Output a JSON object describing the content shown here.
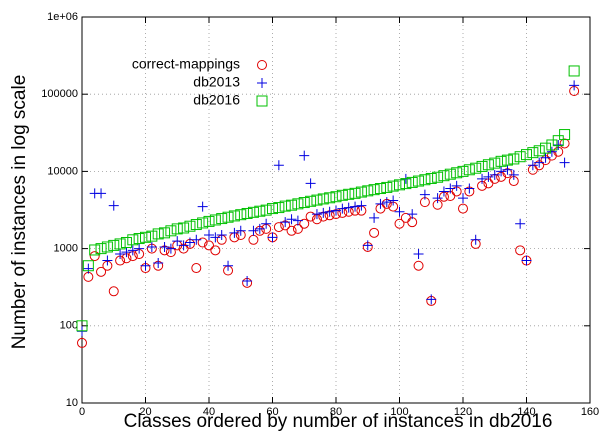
{
  "chart_data": {
    "type": "scatter",
    "x_label": "Classes ordered by number of instances in db2016",
    "y_label": "Number of instances  in log scale",
    "xlim": [
      0,
      160
    ],
    "xticks": [
      0,
      20,
      40,
      60,
      80,
      100,
      120,
      140,
      160
    ],
    "ylim": [
      10,
      1000000
    ],
    "yticks": [
      10,
      100,
      1000,
      10000,
      100000,
      {
        "value": 1000000,
        "label": "1e+06"
      }
    ],
    "y_log": true,
    "grid": true,
    "legend": "upper left",
    "x": [
      0,
      2,
      4,
      6,
      8,
      10,
      12,
      14,
      16,
      18,
      20,
      22,
      24,
      26,
      28,
      30,
      32,
      34,
      36,
      38,
      40,
      42,
      44,
      46,
      48,
      50,
      52,
      54,
      56,
      58,
      60,
      62,
      64,
      66,
      68,
      70,
      72,
      74,
      76,
      78,
      80,
      82,
      84,
      86,
      88,
      90,
      92,
      94,
      96,
      98,
      100,
      102,
      104,
      106,
      108,
      110,
      112,
      114,
      116,
      118,
      120,
      122,
      124,
      126,
      128,
      130,
      132,
      134,
      136,
      138,
      140,
      142,
      144,
      146,
      148,
      150,
      152,
      155
    ],
    "series": [
      {
        "name": "correct-mappings",
        "color": "#e00000",
        "marker": "circle",
        "values": [
          60,
          430,
          800,
          500,
          600,
          280,
          700,
          750,
          800,
          850,
          560,
          1000,
          600,
          950,
          900,
          1100,
          1000,
          1150,
          560,
          1200,
          1100,
          950,
          1300,
          520,
          1400,
          1500,
          360,
          1300,
          1700,
          1800,
          1400,
          1900,
          2000,
          1700,
          1800,
          2100,
          2600,
          2400,
          2600,
          2700,
          2800,
          2900,
          3000,
          3100,
          3100,
          1050,
          1600,
          3300,
          3800,
          3500,
          2100,
          2500,
          2200,
          600,
          4000,
          210,
          3700,
          4700,
          4800,
          5500,
          3300,
          5500,
          1150,
          6500,
          7000,
          8000,
          8500,
          9500,
          7500,
          950,
          700,
          10500,
          12000,
          14000,
          16000,
          18000,
          23000,
          110000
        ]
      },
      {
        "name": "db2013",
        "color": "#0000e0",
        "marker": "plus",
        "values": [
          85,
          550,
          5200,
          5200,
          700,
          3600,
          850,
          900,
          950,
          1000,
          600,
          1050,
          650,
          1050,
          1000,
          1250,
          1100,
          1200,
          1300,
          3500,
          1500,
          1400,
          1500,
          600,
          1600,
          1700,
          380,
          1700,
          1800,
          2100,
          1400,
          12000,
          2200,
          2400,
          2300,
          16000,
          7000,
          2800,
          2900,
          3000,
          3100,
          3300,
          3400,
          3500,
          3600,
          1100,
          2500,
          3800,
          4000,
          4200,
          3000,
          8000,
          2800,
          850,
          5000,
          220,
          4500,
          5500,
          6000,
          6500,
          4500,
          6000,
          1300,
          8000,
          8500,
          9000,
          10000,
          10500,
          9000,
          2100,
          700,
          12000,
          13000,
          15000,
          18000,
          22000,
          13000,
          130000
        ]
      },
      {
        "name": "db2016",
        "color": "#00c000",
        "marker": "square",
        "values": [
          100,
          600,
          960,
          1000,
          1050,
          1100,
          1150,
          1200,
          1300,
          1350,
          1400,
          1450,
          1550,
          1600,
          1700,
          1800,
          1850,
          1950,
          2050,
          2150,
          2250,
          2350,
          2450,
          2550,
          2650,
          2750,
          2850,
          2950,
          3050,
          3150,
          3300,
          3400,
          3550,
          3650,
          3800,
          3950,
          4100,
          4250,
          4400,
          4550,
          4700,
          4900,
          5050,
          5200,
          5400,
          5600,
          5800,
          6000,
          6200,
          6450,
          6700,
          6950,
          7200,
          7500,
          7800,
          8100,
          8400,
          8800,
          9200,
          9600,
          10000,
          10500,
          11000,
          11600,
          12200,
          12800,
          13500,
          14000,
          14500,
          15500,
          16500,
          17500,
          18500,
          20000,
          22000,
          25000,
          30000,
          200000
        ]
      }
    ]
  }
}
